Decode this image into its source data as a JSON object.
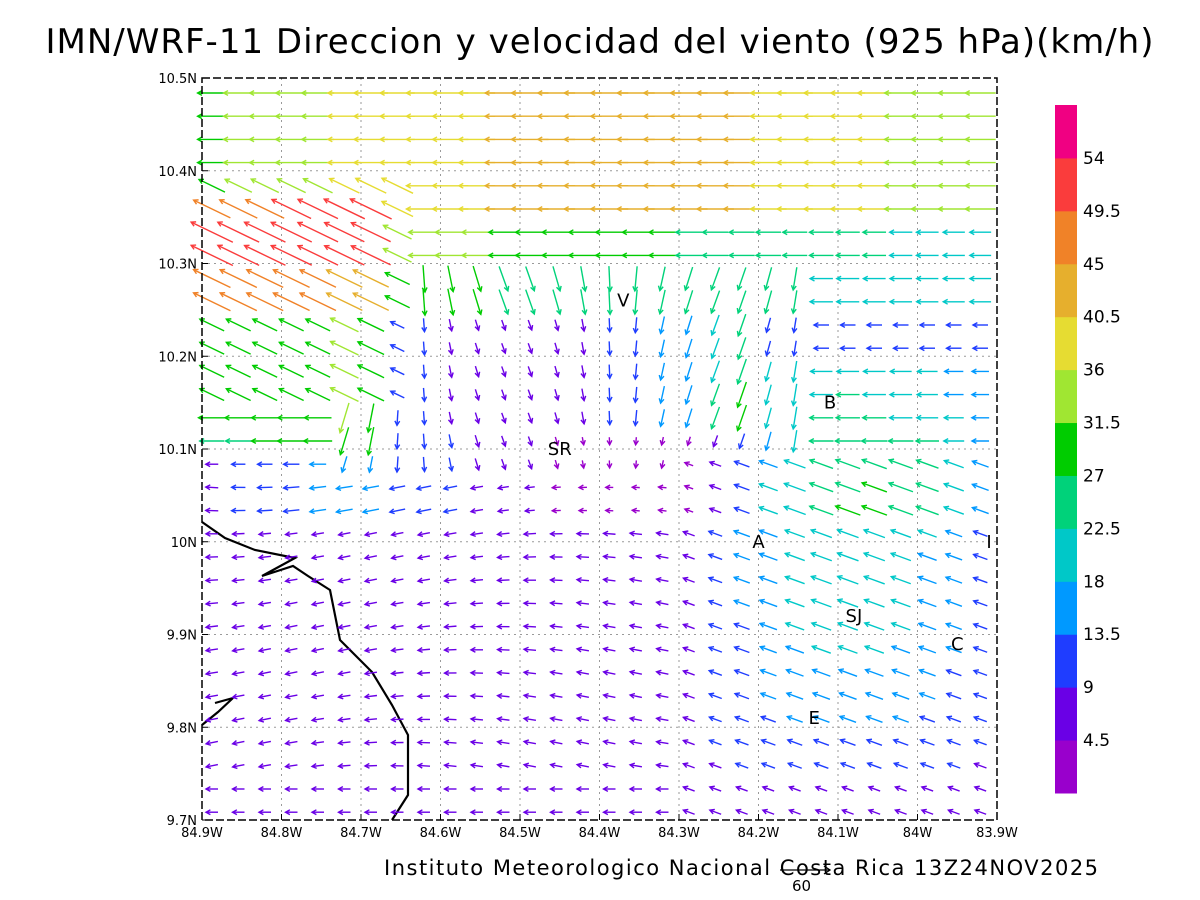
{
  "title": "IMN/WRF-11 Direccion y velocidad del viento (925 hPa)(km/h)",
  "footer": "Instituto Meteorologico Nacional Costa Rica 13Z24NOV2025",
  "reference_vector": {
    "magnitude_label": "60"
  },
  "map": {
    "lon_range": [
      -84.9,
      -83.9
    ],
    "lat_range": [
      9.7,
      10.5
    ],
    "grid": "dotted",
    "lon_ticks": [
      "84.9W",
      "84.8W",
      "84.7W",
      "84.6W",
      "84.5W",
      "84.4W",
      "84.3W",
      "84.2W",
      "84.1W",
      "84W",
      "83.9W"
    ],
    "lat_ticks": [
      "9.7N",
      "9.8N",
      "9.9N",
      "10N",
      "10.1N",
      "10.2N",
      "10.3N",
      "10.4N",
      "10.5N"
    ],
    "places": [
      {
        "label": "V",
        "lon": -84.37,
        "lat": 10.26
      },
      {
        "label": "B",
        "lon": -84.11,
        "lat": 10.15
      },
      {
        "label": "SR",
        "lon": -84.45,
        "lat": 10.1
      },
      {
        "label": "A",
        "lon": -84.2,
        "lat": 10.0
      },
      {
        "label": "SJ",
        "lon": -84.08,
        "lat": 9.92
      },
      {
        "label": "C",
        "lon": -83.95,
        "lat": 9.89
      },
      {
        "label": "E",
        "lon": -84.13,
        "lat": 9.81
      },
      {
        "label": "I",
        "lon": -83.91,
        "lat": 10.0
      }
    ]
  },
  "colorbar": {
    "labels": [
      "4.5",
      "9",
      "13.5",
      "18",
      "22.5",
      "27",
      "31.5",
      "36",
      "40.5",
      "45",
      "49.5",
      "54"
    ],
    "colors": [
      "#9900cc",
      "#6a00e6",
      "#1f3dff",
      "#0099ff",
      "#00c8c8",
      "#00d27a",
      "#00cc00",
      "#a0e632",
      "#e6dc32",
      "#e6af2d",
      "#f08228",
      "#fa3c3c",
      "#f00082"
    ]
  }
}
